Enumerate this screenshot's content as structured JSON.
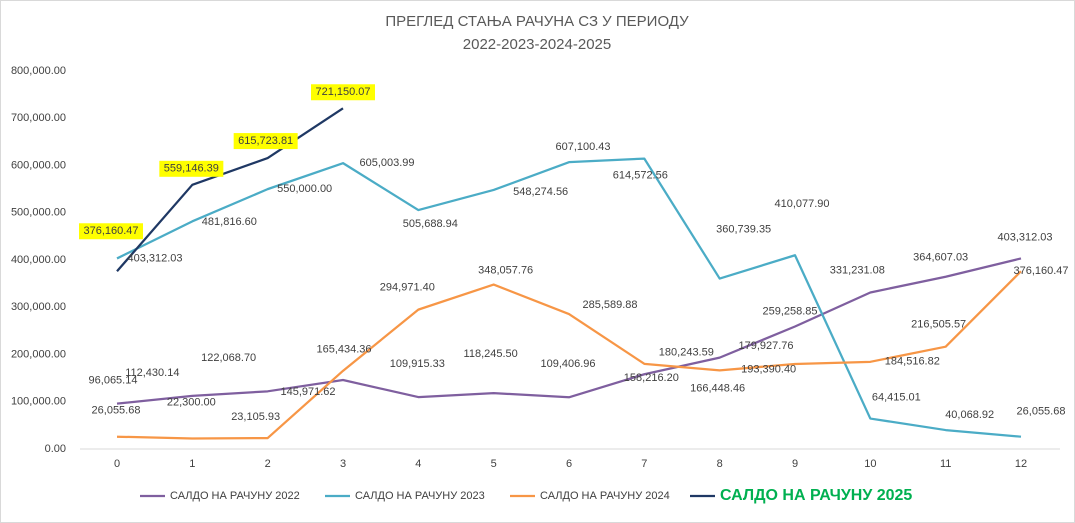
{
  "chart_data": {
    "type": "line",
    "title": "ПРЕГЛЕД СТАЊА РАЧУНА СЗ У ПЕРИОДУ",
    "subtitle": "2022-2023-2024-2025",
    "categories": [
      "0",
      "1",
      "2",
      "3",
      "4",
      "5",
      "6",
      "7",
      "8",
      "9",
      "10",
      "11",
      "12"
    ],
    "ylim": [
      0,
      800000
    ],
    "yticks": [
      {
        "value": 0,
        "label": "0.00"
      },
      {
        "value": 100000,
        "label": "100,000.00"
      },
      {
        "value": 200000,
        "label": "200,000.00"
      },
      {
        "value": 300000,
        "label": "300,000.00"
      },
      {
        "value": 400000,
        "label": "400,000.00"
      },
      {
        "value": 500000,
        "label": "500,000.00"
      },
      {
        "value": 600000,
        "label": "600,000.00"
      },
      {
        "value": 700000,
        "label": "700,000.00"
      },
      {
        "value": 800000,
        "label": "800,000.00"
      }
    ],
    "grid": false,
    "legend": "bottom",
    "series": [
      {
        "name": "САЛДО НА РАЧУНУ 2022",
        "color": "#7f5f9f",
        "values": [
          96065.14,
          112430.14,
          122068.7,
          145971.62,
          109915.33,
          118245.5,
          109406.96,
          158216.2,
          193390.4,
          259258.85,
          331231.08,
          364607.03,
          403312.03
        ],
        "value_labels": [
          "96,065.14",
          "112,430.14",
          "122,068.70",
          "145,971.62",
          "109,915.33",
          "118,245.50",
          "109,406.96",
          "158,216.20",
          "193,390.40",
          "259,258.85",
          "331,231.08",
          "364,607.03",
          "403,312.03"
        ]
      },
      {
        "name": "САЛДО НА РАЧУНУ 2023",
        "color": "#4bacc6",
        "values": [
          403312.03,
          481816.6,
          550000.0,
          605003.99,
          505688.94,
          548274.56,
          607100.43,
          614572.56,
          360739.35,
          410077.9,
          64415.01,
          40068.92,
          26055.68
        ],
        "value_labels": [
          "403,312.03",
          "481,816.60",
          "550,000.00",
          "605,003.99",
          "505,688.94",
          "548,274.56",
          "607,100.43",
          "614,572.56",
          "360,739.35",
          "410,077.90",
          "64,415.01",
          "40,068.92",
          "26,055.68"
        ]
      },
      {
        "name": "САЛДО НА РАЧУНУ 2024",
        "color": "#f79646",
        "values": [
          26055.68,
          22300.0,
          23105.93,
          165434.36,
          294971.4,
          348057.76,
          285589.88,
          180243.59,
          166448.46,
          179927.76,
          184516.82,
          216505.57,
          376160.47
        ],
        "value_labels": [
          "26,055.68",
          "22,300.00",
          "23,105.93",
          "165,434.36",
          "294,971.40",
          "348,057.76",
          "285,589.88",
          "180,243.59",
          "166,448.46",
          "179,927.76",
          "184,516.82",
          "216,505.57",
          "376,160.47"
        ]
      },
      {
        "name": "САЛДО НА РАЧУНУ 2025",
        "color": "#1f3864",
        "label_highlight": "#ffff00",
        "values": [
          376160.47,
          559146.39,
          615723.81,
          721150.07,
          null,
          null,
          null,
          null,
          null,
          null,
          null,
          null,
          null
        ],
        "value_labels": [
          "376,160.47",
          "559,146.39",
          "615,723.81",
          "721,150.07",
          null,
          null,
          null,
          null,
          null,
          null,
          null,
          null,
          null
        ]
      }
    ]
  }
}
